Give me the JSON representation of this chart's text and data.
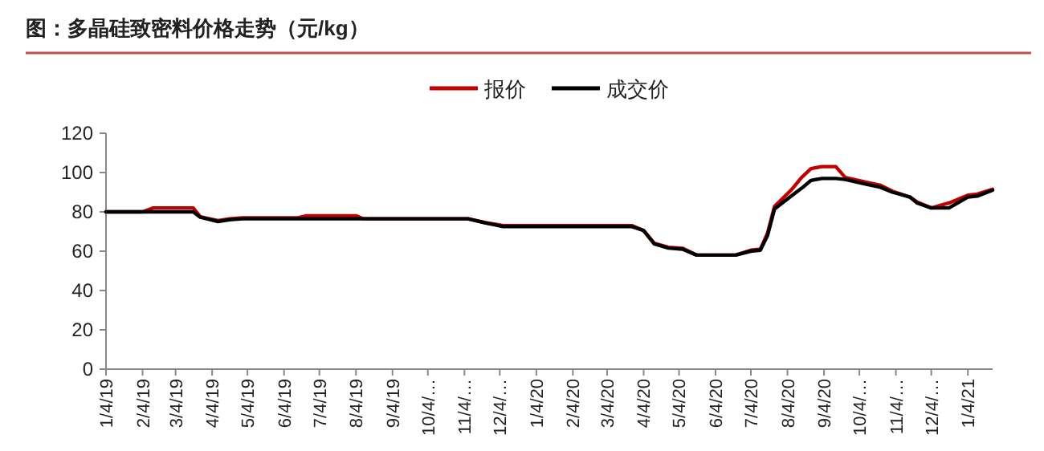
{
  "chart_data": {
    "type": "line",
    "title": "图：多晶硅致密料价格走势（元/kg）",
    "x": [
      "2019-01-04",
      "2019-02-04",
      "2019-02-13",
      "2019-03-19",
      "2019-03-25",
      "2019-04-09",
      "2019-04-19",
      "2019-04-30",
      "2019-06-16",
      "2019-06-23",
      "2019-08-04",
      "2019-08-10",
      "2019-11-07",
      "2019-11-22",
      "2019-12-07",
      "2020-03-25",
      "2020-04-04",
      "2020-04-13",
      "2020-04-25",
      "2020-05-07",
      "2020-05-19",
      "2020-06-21",
      "2020-07-04",
      "2020-07-12",
      "2020-07-18",
      "2020-07-24",
      "2020-08-07",
      "2020-08-16",
      "2020-08-24",
      "2020-09-02",
      "2020-09-14",
      "2020-09-22",
      "2020-10-10",
      "2020-10-22",
      "2020-11-01",
      "2020-11-16",
      "2020-11-22",
      "2020-12-04",
      "2020-12-19",
      "2021-01-04",
      "2021-01-12",
      "2021-01-25"
    ],
    "series": [
      {
        "name": "报价",
        "color": "#c00000",
        "values": [
          80,
          80,
          82,
          82,
          77.5,
          75.5,
          76.5,
          77,
          77,
          78,
          78,
          76.5,
          76.5,
          74.5,
          73,
          73,
          70.5,
          64,
          62,
          61.5,
          58,
          58,
          60.5,
          61,
          69,
          82.7,
          91,
          97.5,
          102,
          103,
          103,
          97.5,
          95,
          93.5,
          90.5,
          87.5,
          85,
          82,
          84.5,
          88.5,
          89,
          91.5
        ]
      },
      {
        "name": "成交价",
        "color": "#000000",
        "values": [
          80,
          80,
          80,
          80,
          77.3,
          75.1,
          76,
          76.5,
          76.5,
          76.5,
          76.5,
          76.5,
          76.5,
          74.3,
          72.5,
          72.5,
          70.5,
          63.7,
          61.6,
          61,
          58,
          58,
          60,
          60.5,
          67.8,
          81.4,
          88,
          92,
          96,
          97,
          97,
          96.5,
          94,
          92.5,
          90,
          87.5,
          84.5,
          82,
          82,
          87.5,
          88,
          91
        ]
      }
    ],
    "xlim": [
      "2019-01-04",
      "2021-01-25"
    ],
    "xticks": [
      {
        "value": "2019-01-04",
        "label": "1/4/19"
      },
      {
        "value": "2019-02-04",
        "label": "2/4/19"
      },
      {
        "value": "2019-03-04",
        "label": "3/4/19"
      },
      {
        "value": "2019-04-04",
        "label": "4/4/19"
      },
      {
        "value": "2019-05-04",
        "label": "5/4/19"
      },
      {
        "value": "2019-06-04",
        "label": "6/4/19"
      },
      {
        "value": "2019-07-04",
        "label": "7/4/19"
      },
      {
        "value": "2019-08-04",
        "label": "8/4/19"
      },
      {
        "value": "2019-09-04",
        "label": "9/4/19"
      },
      {
        "value": "2019-10-04",
        "label": "10/4/…"
      },
      {
        "value": "2019-11-04",
        "label": "11/4/…"
      },
      {
        "value": "2019-12-04",
        "label": "12/4/…"
      },
      {
        "value": "2020-01-04",
        "label": "1/4/20"
      },
      {
        "value": "2020-02-04",
        "label": "2/4/20"
      },
      {
        "value": "2020-03-04",
        "label": "3/4/20"
      },
      {
        "value": "2020-04-04",
        "label": "4/4/20"
      },
      {
        "value": "2020-05-04",
        "label": "5/4/20"
      },
      {
        "value": "2020-06-04",
        "label": "6/4/20"
      },
      {
        "value": "2020-07-04",
        "label": "7/4/20"
      },
      {
        "value": "2020-08-04",
        "label": "8/4/20"
      },
      {
        "value": "2020-09-04",
        "label": "9/4/20"
      },
      {
        "value": "2020-10-04",
        "label": "10/4/…"
      },
      {
        "value": "2020-11-04",
        "label": "11/4/…"
      },
      {
        "value": "2020-12-04",
        "label": "12/4/…"
      },
      {
        "value": "2021-01-04",
        "label": "1/4/21"
      }
    ],
    "ylim": [
      0,
      120
    ],
    "yticks": [
      0,
      20,
      40,
      60,
      80,
      100,
      120
    ],
    "legend": "top"
  }
}
